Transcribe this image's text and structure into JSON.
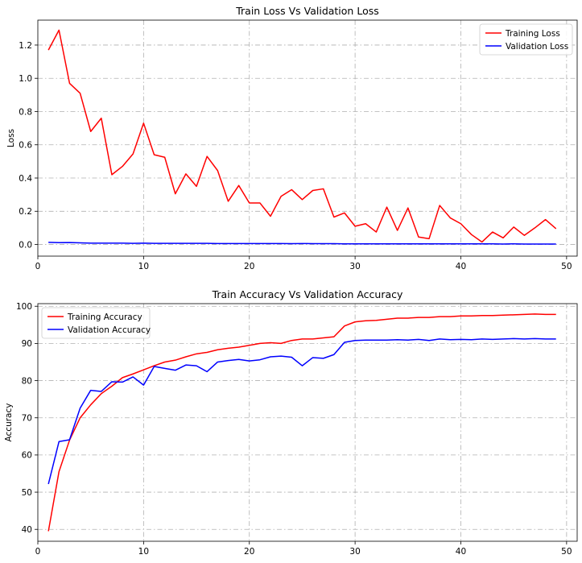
{
  "chart_data": [
    {
      "type": "line",
      "title": "Train Loss Vs Validation Loss",
      "xlabel": "",
      "ylabel": "Loss",
      "xlim": [
        0,
        51
      ],
      "ylim": [
        -0.07,
        1.35
      ],
      "xticks": [
        0,
        10,
        20,
        30,
        40,
        50
      ],
      "yticks": [
        0.0,
        0.2,
        0.4,
        0.6,
        0.8,
        1.0,
        1.2
      ],
      "ytick_labels": [
        "0.0",
        "0.2",
        "0.4",
        "0.6",
        "0.8",
        "1.0",
        "1.2"
      ],
      "grid": true,
      "legend_position": "top-right",
      "x": [
        1,
        2,
        3,
        4,
        5,
        6,
        7,
        8,
        9,
        10,
        11,
        12,
        13,
        14,
        15,
        16,
        17,
        18,
        19,
        20,
        21,
        22,
        23,
        24,
        25,
        26,
        27,
        28,
        29,
        30,
        31,
        32,
        33,
        34,
        35,
        36,
        37,
        38,
        39,
        40,
        41,
        42,
        43,
        44,
        45,
        46,
        47,
        48,
        49
      ],
      "series": [
        {
          "name": "Training Loss",
          "color": "#ff0000",
          "values": [
            1.17,
            1.29,
            0.97,
            0.91,
            0.68,
            0.76,
            0.42,
            0.47,
            0.545,
            0.73,
            0.54,
            0.525,
            0.305,
            0.425,
            0.35,
            0.53,
            0.445,
            0.26,
            0.355,
            0.25,
            0.25,
            0.17,
            0.29,
            0.33,
            0.27,
            0.325,
            0.335,
            0.165,
            0.19,
            0.11,
            0.125,
            0.075,
            0.225,
            0.085,
            0.22,
            0.045,
            0.035,
            0.235,
            0.16,
            0.125,
            0.06,
            0.015,
            0.075,
            0.04,
            0.105,
            0.055,
            0.1,
            0.15,
            0.095
          ]
        },
        {
          "name": "Validation Loss",
          "color": "#0000ff",
          "values": [
            0.013,
            0.011,
            0.012,
            0.01,
            0.008,
            0.008,
            0.008,
            0.008,
            0.007,
            0.008,
            0.007,
            0.007,
            0.007,
            0.007,
            0.007,
            0.007,
            0.006,
            0.006,
            0.006,
            0.006,
            0.006,
            0.006,
            0.006,
            0.005,
            0.006,
            0.005,
            0.005,
            0.005,
            0.004,
            0.004,
            0.004,
            0.004,
            0.004,
            0.004,
            0.004,
            0.004,
            0.004,
            0.004,
            0.004,
            0.004,
            0.004,
            0.004,
            0.004,
            0.003,
            0.004,
            0.003,
            0.003,
            0.003,
            0.003
          ]
        }
      ]
    },
    {
      "type": "line",
      "title": "Train Accuracy Vs Validation Accuracy",
      "xlabel": "",
      "ylabel": "Accuracy",
      "xlim": [
        0,
        51
      ],
      "ylim": [
        36.8,
        100.7
      ],
      "xticks": [
        0,
        10,
        20,
        30,
        40,
        50
      ],
      "yticks": [
        40,
        50,
        60,
        70,
        80,
        90,
        100
      ],
      "ytick_labels": [
        "40",
        "50",
        "60",
        "70",
        "80",
        "90",
        "100"
      ],
      "grid": true,
      "legend_position": "top-left",
      "x": [
        1,
        2,
        3,
        4,
        5,
        6,
        7,
        8,
        9,
        10,
        11,
        12,
        13,
        14,
        15,
        16,
        17,
        18,
        19,
        20,
        21,
        22,
        23,
        24,
        25,
        26,
        27,
        28,
        29,
        30,
        31,
        32,
        33,
        34,
        35,
        36,
        37,
        38,
        39,
        40,
        41,
        42,
        43,
        44,
        45,
        46,
        47,
        48,
        49
      ],
      "series": [
        {
          "name": "Training Accuracy",
          "color": "#ff0000",
          "values": [
            39.5,
            55.5,
            64.0,
            70.0,
            73.5,
            76.5,
            78.5,
            80.8,
            81.8,
            82.9,
            84.0,
            85.0,
            85.5,
            86.4,
            87.2,
            87.6,
            88.3,
            88.7,
            89.0,
            89.5,
            90.0,
            90.2,
            90.0,
            90.8,
            91.2,
            91.2,
            91.5,
            91.8,
            94.7,
            95.8,
            96.1,
            96.2,
            96.5,
            96.8,
            96.8,
            97.0,
            97.0,
            97.2,
            97.2,
            97.4,
            97.4,
            97.5,
            97.5,
            97.6,
            97.7,
            97.8,
            97.9,
            97.8,
            97.8
          ]
        },
        {
          "name": "Validation Accuracy",
          "color": "#0000ff",
          "values": [
            52.2,
            63.6,
            64.1,
            72.6,
            77.4,
            77.1,
            79.7,
            79.6,
            81.0,
            78.8,
            83.8,
            83.3,
            82.8,
            84.2,
            84.0,
            82.4,
            85.0,
            85.4,
            85.7,
            85.3,
            85.6,
            86.4,
            86.6,
            86.3,
            84.0,
            86.2,
            86.0,
            87.0,
            90.3,
            90.8,
            90.9,
            90.9,
            90.9,
            91.0,
            90.9,
            91.1,
            90.8,
            91.2,
            91.0,
            91.1,
            91.0,
            91.2,
            91.1,
            91.2,
            91.3,
            91.2,
            91.3,
            91.2,
            91.2
          ]
        }
      ]
    }
  ]
}
